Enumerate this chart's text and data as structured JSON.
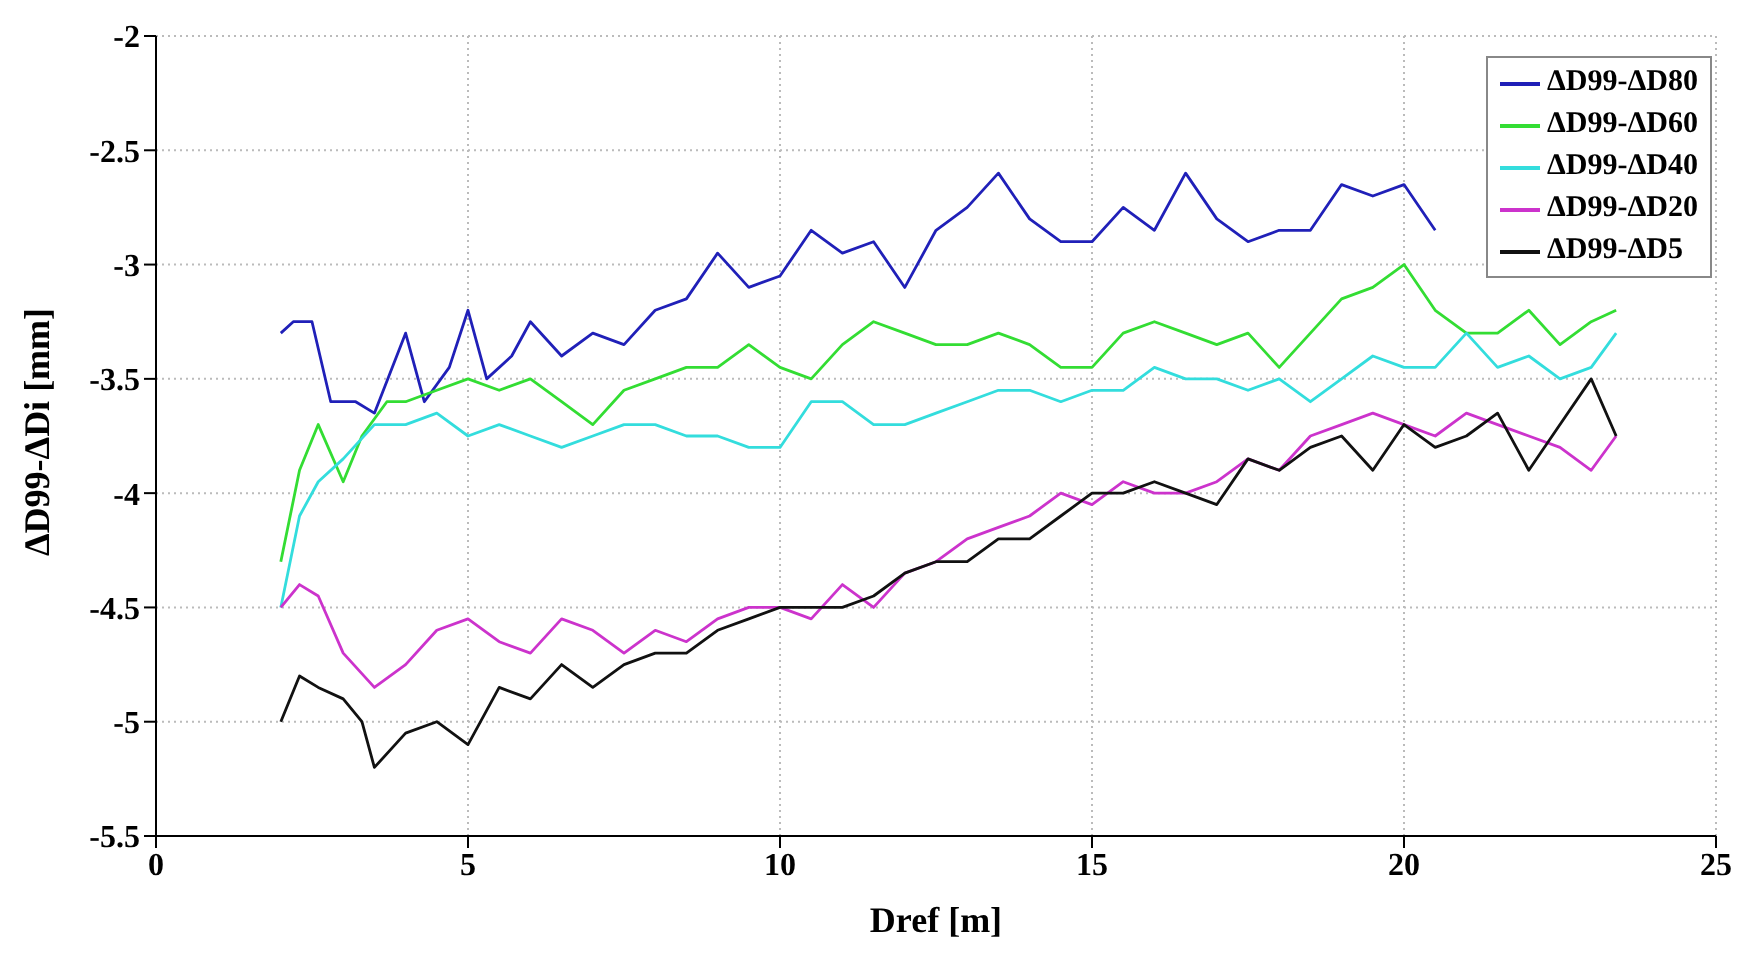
{
  "chart_data": {
    "type": "line",
    "xlabel": "Dref [m]",
    "ylabel": "ΔD99-ΔDi [mm]",
    "xlim": [
      0,
      25
    ],
    "xticks": [
      0,
      5,
      10,
      15,
      20,
      25
    ],
    "ylim": [
      -5.5,
      -2
    ],
    "yticks": [
      -5.5,
      -5,
      -4.5,
      -4,
      -3.5,
      -3,
      -2.5,
      -2
    ],
    "grid": true,
    "legend": "top right",
    "marker": "none",
    "line_style": "solid",
    "series": [
      {
        "name": "ΔD99-ΔD80",
        "color": "#2020b8",
        "x": [
          2,
          2.2,
          2.5,
          2.8,
          3.2,
          3.5,
          4,
          4.3,
          4.7,
          5,
          5.3,
          5.7,
          6,
          6.5,
          7,
          7.5,
          8,
          8.5,
          9,
          9.5,
          10,
          10.5,
          11,
          11.5,
          12,
          12.5,
          13,
          13.5,
          14,
          14.5,
          15,
          15.5,
          16,
          16.5,
          17,
          17.5,
          18,
          18.5,
          19,
          19.5,
          20,
          20.5
        ],
        "values": [
          -3.3,
          -3.25,
          -3.25,
          -3.6,
          -3.6,
          -3.65,
          -3.3,
          -3.6,
          -3.45,
          -3.2,
          -3.5,
          -3.4,
          -3.25,
          -3.4,
          -3.3,
          -3.35,
          -3.2,
          -3.15,
          -2.95,
          -3.1,
          -3.05,
          -2.85,
          -2.95,
          -2.9,
          -3.1,
          -2.85,
          -2.75,
          -2.6,
          -2.8,
          -2.9,
          -2.9,
          -2.75,
          -2.85,
          -2.6,
          -2.8,
          -2.9,
          -2.85,
          -2.85,
          -2.65,
          -2.7,
          -2.65,
          -2.85
        ]
      },
      {
        "name": "ΔD99-ΔD60",
        "color": "#33dd33",
        "x": [
          2,
          2.3,
          2.6,
          3,
          3.3,
          3.7,
          4,
          4.5,
          5,
          5.5,
          6,
          6.5,
          7,
          7.5,
          8,
          8.5,
          9,
          9.5,
          10,
          10.5,
          11,
          11.5,
          12,
          12.5,
          13,
          13.5,
          14,
          14.5,
          15,
          15.5,
          16,
          16.5,
          17,
          17.5,
          18,
          18.5,
          19,
          19.5,
          20,
          20.5,
          21,
          21.5,
          22,
          22.5,
          23,
          23.4
        ],
        "values": [
          -4.3,
          -3.9,
          -3.7,
          -3.95,
          -3.75,
          -3.6,
          -3.6,
          -3.55,
          -3.5,
          -3.55,
          -3.5,
          -3.6,
          -3.7,
          -3.55,
          -3.5,
          -3.45,
          -3.45,
          -3.35,
          -3.45,
          -3.5,
          -3.35,
          -3.25,
          -3.3,
          -3.35,
          -3.35,
          -3.3,
          -3.35,
          -3.45,
          -3.45,
          -3.3,
          -3.25,
          -3.3,
          -3.35,
          -3.3,
          -3.45,
          -3.3,
          -3.15,
          -3.1,
          -3.0,
          -3.2,
          -3.3,
          -3.3,
          -3.2,
          -3.35,
          -3.25,
          -3.2
        ]
      },
      {
        "name": "ΔD99-ΔD40",
        "color": "#33dddd",
        "x": [
          2,
          2.3,
          2.6,
          3,
          3.5,
          4,
          4.5,
          5,
          5.5,
          6,
          6.5,
          7,
          7.5,
          8,
          8.5,
          9,
          9.5,
          10,
          10.5,
          11,
          11.5,
          12,
          12.5,
          13,
          13.5,
          14,
          14.5,
          15,
          15.5,
          16,
          16.5,
          17,
          17.5,
          18,
          18.5,
          19,
          19.5,
          20,
          20.5,
          21,
          21.5,
          22,
          22.5,
          23,
          23.4
        ],
        "values": [
          -4.5,
          -4.1,
          -3.95,
          -3.85,
          -3.7,
          -3.7,
          -3.65,
          -3.75,
          -3.7,
          -3.75,
          -3.8,
          -3.75,
          -3.7,
          -3.7,
          -3.75,
          -3.75,
          -3.8,
          -3.8,
          -3.6,
          -3.6,
          -3.7,
          -3.7,
          -3.65,
          -3.6,
          -3.55,
          -3.55,
          -3.6,
          -3.55,
          -3.55,
          -3.45,
          -3.5,
          -3.5,
          -3.55,
          -3.5,
          -3.6,
          -3.5,
          -3.4,
          -3.45,
          -3.45,
          -3.3,
          -3.45,
          -3.4,
          -3.5,
          -3.45,
          -3.3
        ]
      },
      {
        "name": "ΔD99-ΔD20",
        "color": "#cc33cc",
        "x": [
          2,
          2.3,
          2.6,
          3,
          3.5,
          4,
          4.5,
          5,
          5.5,
          6,
          6.5,
          7,
          7.5,
          8,
          8.5,
          9,
          9.5,
          10,
          10.5,
          11,
          11.5,
          12,
          12.5,
          13,
          13.5,
          14,
          14.5,
          15,
          15.5,
          16,
          16.5,
          17,
          17.5,
          18,
          18.5,
          19,
          19.5,
          20,
          20.5,
          21,
          21.5,
          22,
          22.5,
          23,
          23.4
        ],
        "values": [
          -4.5,
          -4.4,
          -4.45,
          -4.7,
          -4.85,
          -4.75,
          -4.6,
          -4.55,
          -4.65,
          -4.7,
          -4.55,
          -4.6,
          -4.7,
          -4.6,
          -4.65,
          -4.55,
          -4.5,
          -4.5,
          -4.55,
          -4.4,
          -4.5,
          -4.35,
          -4.3,
          -4.2,
          -4.15,
          -4.1,
          -4.0,
          -4.05,
          -3.95,
          -4.0,
          -4.0,
          -3.95,
          -3.85,
          -3.9,
          -3.75,
          -3.7,
          -3.65,
          -3.7,
          -3.75,
          -3.65,
          -3.7,
          -3.75,
          -3.8,
          -3.9,
          -3.75
        ]
      },
      {
        "name": "ΔD99-ΔD5",
        "color": "#111111",
        "x": [
          2,
          2.3,
          2.6,
          3,
          3.3,
          3.5,
          4,
          4.5,
          5,
          5.5,
          6,
          6.5,
          7,
          7.5,
          8,
          8.5,
          9,
          9.5,
          10,
          10.5,
          11,
          11.5,
          12,
          12.5,
          13,
          13.5,
          14,
          14.5,
          15,
          15.5,
          16,
          16.5,
          17,
          17.5,
          18,
          18.5,
          19,
          19.5,
          20,
          20.5,
          21,
          21.5,
          22,
          22.5,
          23,
          23.4
        ],
        "values": [
          -5.0,
          -4.8,
          -4.85,
          -4.9,
          -5.0,
          -5.2,
          -5.05,
          -5.0,
          -5.1,
          -4.85,
          -4.9,
          -4.75,
          -4.85,
          -4.75,
          -4.7,
          -4.7,
          -4.6,
          -4.55,
          -4.5,
          -4.5,
          -4.5,
          -4.45,
          -4.35,
          -4.3,
          -4.3,
          -4.2,
          -4.2,
          -4.1,
          -4.0,
          -4.0,
          -3.95,
          -4.0,
          -4.05,
          -3.85,
          -3.9,
          -3.8,
          -3.75,
          -3.9,
          -3.7,
          -3.8,
          -3.75,
          -3.65,
          -3.9,
          -3.7,
          -3.5,
          -3.75
        ]
      }
    ]
  }
}
